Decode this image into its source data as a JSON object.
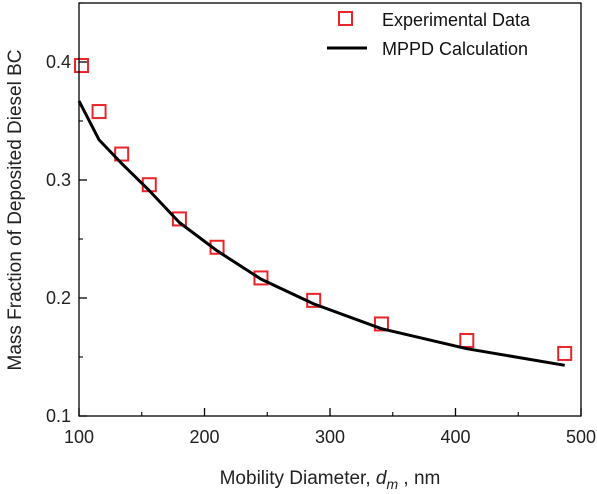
{
  "chart_data": {
    "type": "scatter",
    "title": "",
    "xlabel": {
      "prefix": "Mobility Diameter, ",
      "var": "d",
      "sub": "m",
      "suffix": " , nm"
    },
    "ylabel": "Mass Fraction of Deposited Diesel BC",
    "xlim": [
      100,
      500
    ],
    "ylim": [
      0.1,
      0.45
    ],
    "xticks": [
      100,
      200,
      300,
      400,
      500
    ],
    "yticks": [
      0.1,
      0.2,
      0.3,
      0.4
    ],
    "xtick_labels": [
      "100",
      "200",
      "300",
      "400",
      "500"
    ],
    "ytick_labels": [
      "0.1",
      "0.2",
      "0.3",
      "0.4"
    ],
    "grid": false,
    "legend_position": "top-right",
    "series": [
      {
        "name": "Experimental Data",
        "kind": "scatter",
        "marker": "open-square",
        "color": "#e8262a",
        "x": [
          102,
          116,
          134,
          156,
          180,
          210,
          245,
          287,
          341,
          409,
          487
        ],
        "y": [
          0.397,
          0.358,
          0.322,
          0.296,
          0.267,
          0.243,
          0.217,
          0.198,
          0.178,
          0.164,
          0.153
        ]
      },
      {
        "name": "MPPD Calculation",
        "kind": "line",
        "color": "#000000",
        "x": [
          100,
          116,
          134,
          156,
          180,
          210,
          245,
          287,
          341,
          409,
          487
        ],
        "y": [
          0.367,
          0.334,
          0.314,
          0.291,
          0.264,
          0.24,
          0.216,
          0.195,
          0.174,
          0.157,
          0.143
        ]
      }
    ]
  }
}
